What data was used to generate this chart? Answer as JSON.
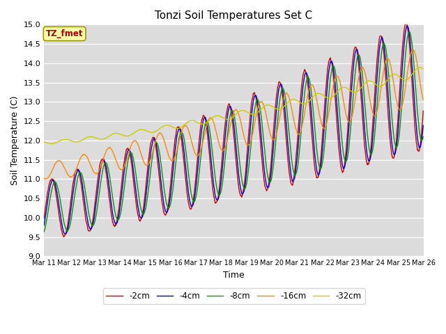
{
  "title": "Tonzi Soil Temperatures Set C",
  "xlabel": "Time",
  "ylabel": "Soil Temperature (C)",
  "ylim": [
    9.0,
    15.0
  ],
  "yticks": [
    9.0,
    9.5,
    10.0,
    10.5,
    11.0,
    11.5,
    12.0,
    12.5,
    13.0,
    13.5,
    14.0,
    14.5,
    15.0
  ],
  "bg_color": "#dcdcdc",
  "legend_labels": [
    "-2cm",
    "-4cm",
    "-8cm",
    "-16cm",
    "-32cm"
  ],
  "legend_colors": [
    "#cc0000",
    "#0000cc",
    "#009900",
    "#ff8800",
    "#cccc00"
  ],
  "annotation_text": "TZ_fmet",
  "annotation_bg": "#ffffaa",
  "annotation_fg": "#aa0000",
  "title_fontsize": 11,
  "label_fontsize": 9,
  "tick_fontsize": 8
}
